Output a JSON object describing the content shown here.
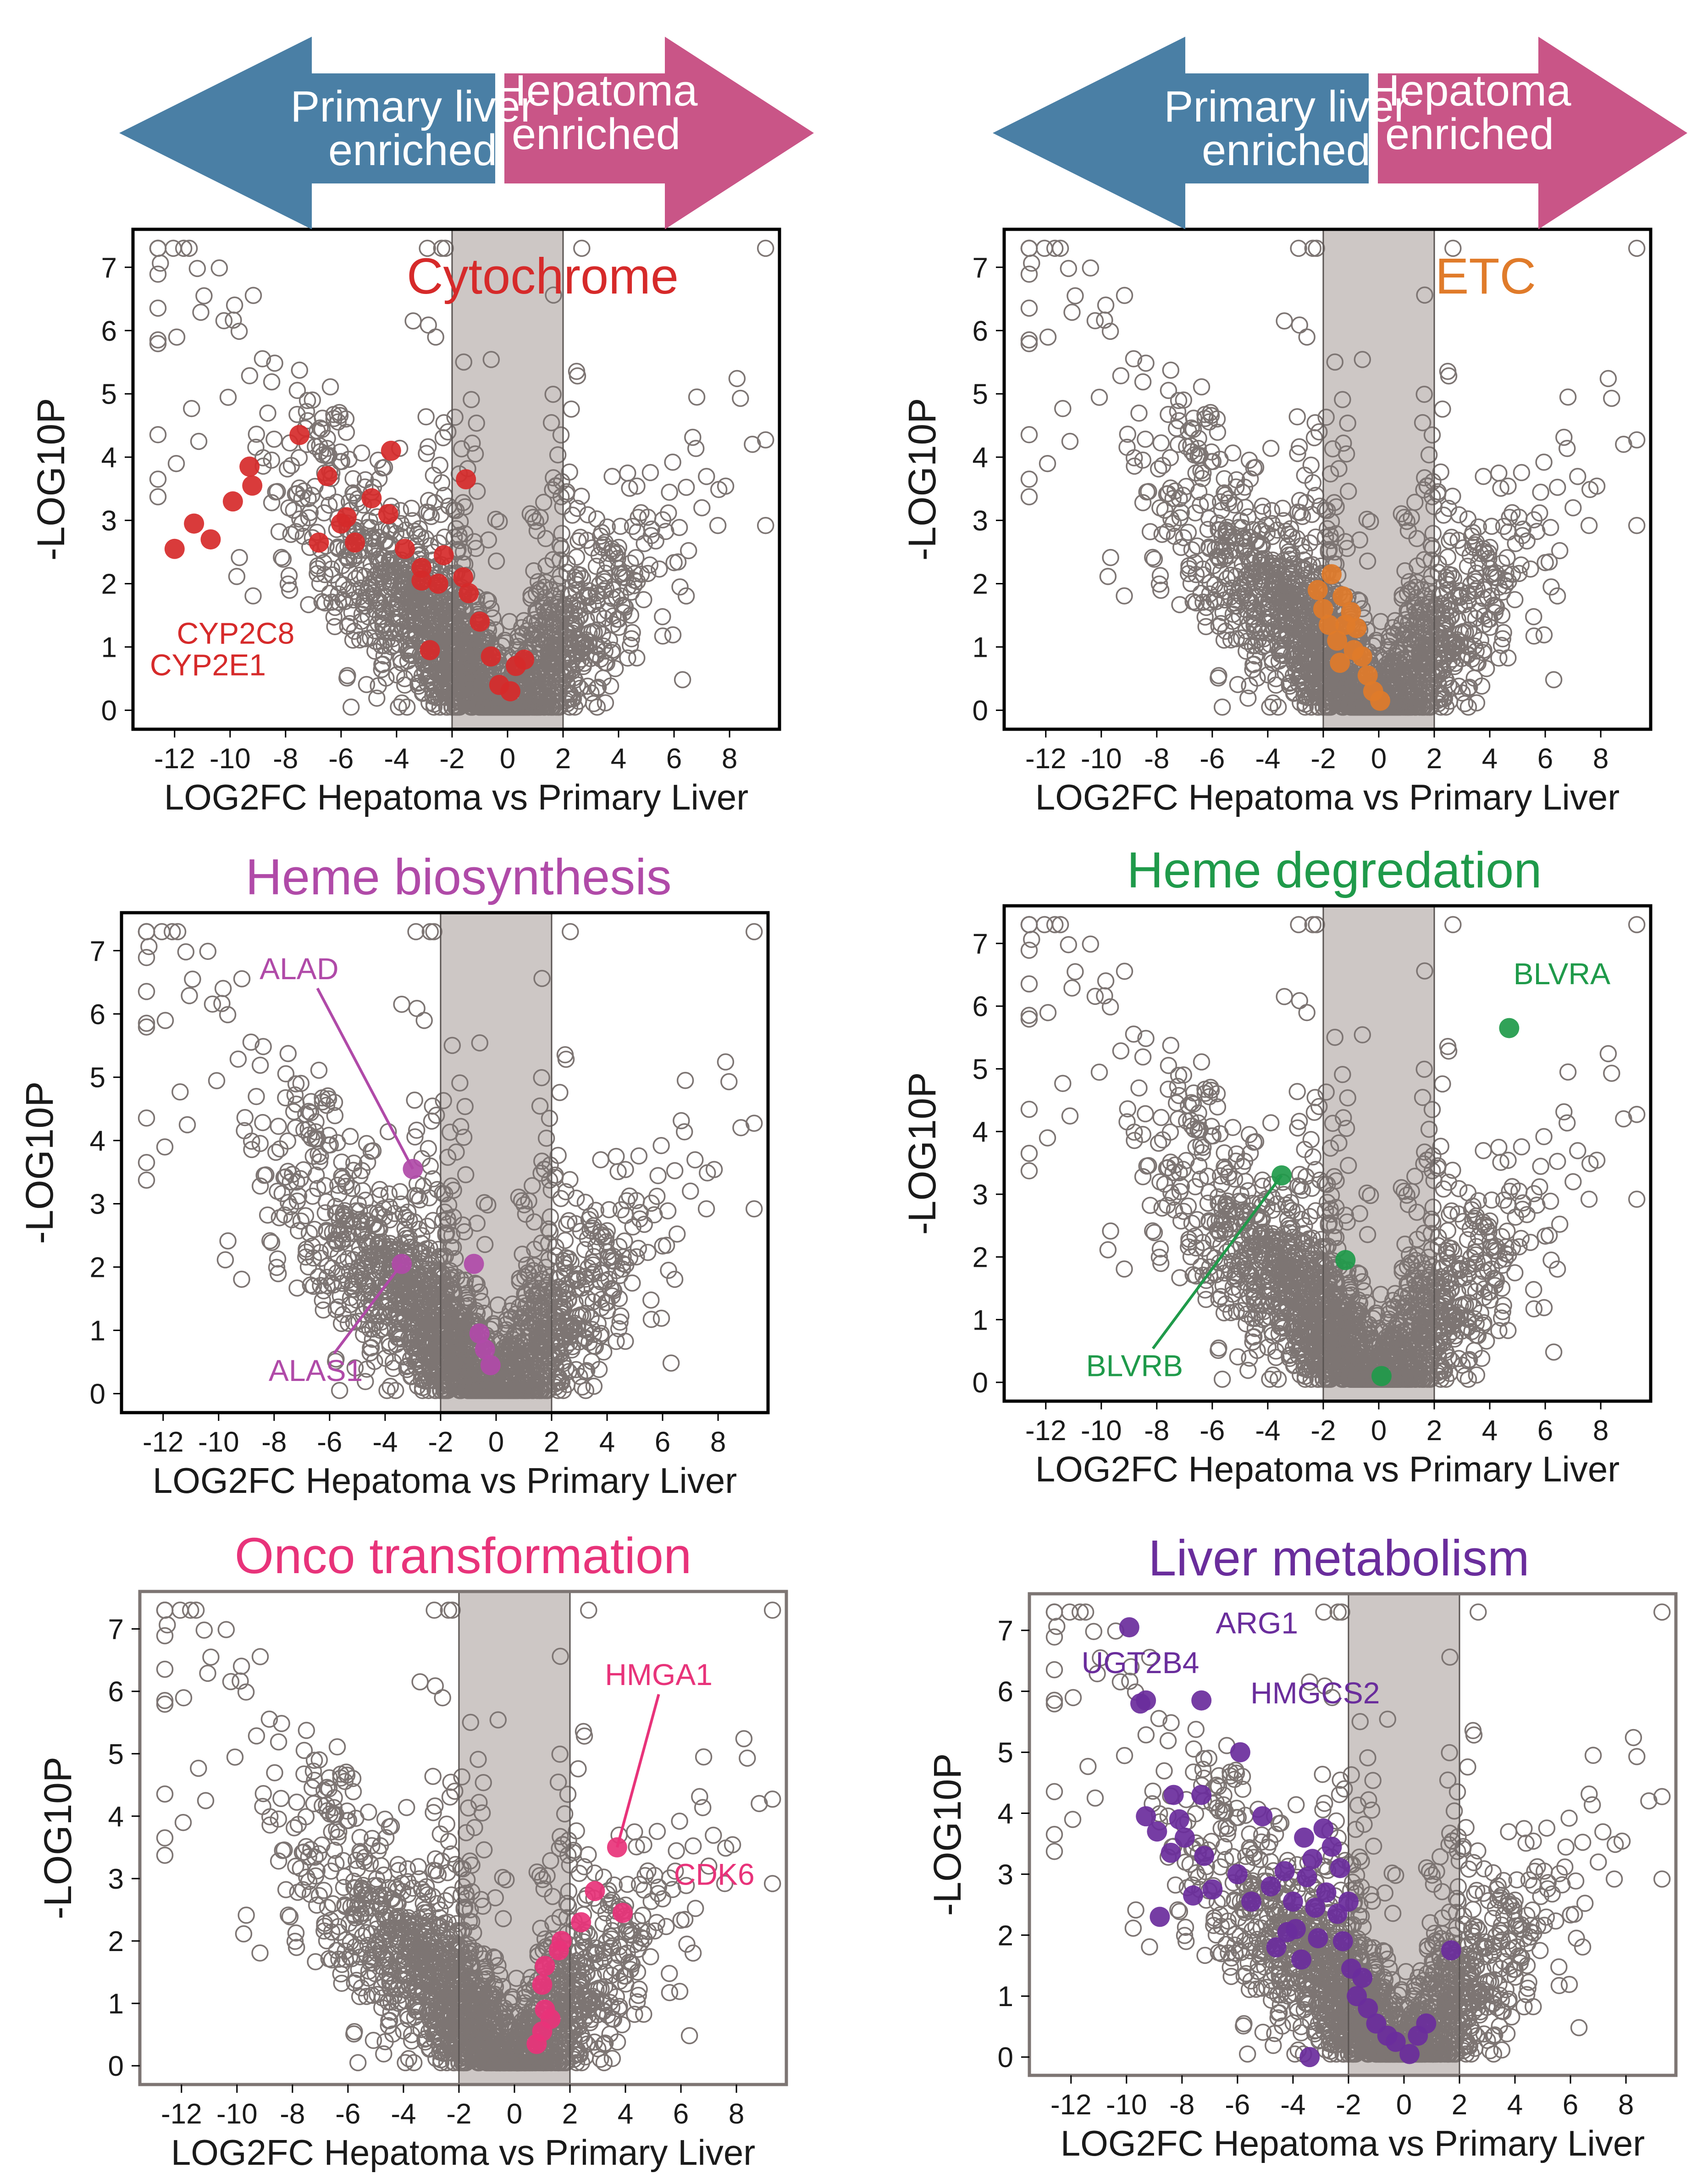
{
  "arrows": [
    {
      "left_label": [
        "Primary liver",
        "enriched"
      ],
      "right_label": [
        "Hepatoma",
        "enriched"
      ],
      "left_color": "#4a7fa5",
      "right_color": "#c95587"
    },
    {
      "left_label": [
        "Primary liver",
        "enriched"
      ],
      "right_label": [
        "Hepatoma",
        "enriched"
      ],
      "left_color": "#4a7fa5",
      "right_color": "#c95587"
    }
  ],
  "chart_data": [
    {
      "type": "scatter",
      "title": "Cytochrome",
      "title_inside": true,
      "accent": "#d62a2a",
      "frame": "black",
      "xlabel": "LOG2FC Hepatoma vs Primary Liver",
      "ylabel": "-LOG10P",
      "xlim": [
        -13.5,
        9.8
      ],
      "ylim": [
        -0.3,
        7.6
      ],
      "xticks": [
        -12,
        -10,
        -8,
        -6,
        -4,
        -2,
        0,
        2,
        4,
        6,
        8
      ],
      "yticks": [
        0,
        1,
        2,
        3,
        4,
        5,
        6,
        7
      ],
      "shade": [
        -2,
        2
      ],
      "highlight": [
        [
          -12,
          2.55
        ],
        [
          -11.3,
          2.95
        ],
        [
          -10.7,
          2.7
        ],
        [
          -9.9,
          3.3
        ],
        [
          -9.3,
          3.85
        ],
        [
          -9.2,
          3.55
        ],
        [
          -7.5,
          4.35
        ],
        [
          -6.8,
          2.65
        ],
        [
          -6.5,
          3.7
        ],
        [
          -6.0,
          2.95
        ],
        [
          -5.8,
          3.05
        ],
        [
          -5.5,
          2.65
        ],
        [
          -4.9,
          3.35
        ],
        [
          -4.3,
          3.1
        ],
        [
          -4.2,
          4.1
        ],
        [
          -3.7,
          2.55
        ],
        [
          -3.1,
          2.25
        ],
        [
          -3.1,
          2.05
        ],
        [
          -2.8,
          0.95
        ],
        [
          -2.5,
          2.0
        ],
        [
          -2.3,
          2.45
        ],
        [
          -1.6,
          2.1
        ],
        [
          -1.4,
          1.85
        ],
        [
          -1.5,
          3.65
        ],
        [
          -1.0,
          1.4
        ],
        [
          -0.6,
          0.85
        ],
        [
          0.1,
          0.3
        ],
        [
          0.3,
          0.7
        ],
        [
          0.6,
          0.8
        ],
        [
          -0.3,
          0.4
        ]
      ],
      "labels": [
        {
          "text": "CYP2C8",
          "x": -9.8,
          "y": 1.05,
          "anchor": "middle"
        },
        {
          "text": "CYP2E1",
          "x": -10.8,
          "y": 0.55,
          "anchor": "middle"
        }
      ]
    },
    {
      "type": "scatter",
      "title": "ETC",
      "title_inside": true,
      "accent": "#e07b2a",
      "frame": "black",
      "xlabel": "LOG2FC Hepatoma vs Primary Liver",
      "ylabel": "-LOG10P",
      "xlim": [
        -13.5,
        9.8
      ],
      "ylim": [
        -0.3,
        7.6
      ],
      "xticks": [
        -12,
        -10,
        -8,
        -6,
        -4,
        -2,
        0,
        2,
        4,
        6,
        8
      ],
      "yticks": [
        0,
        1,
        2,
        3,
        4,
        5,
        6,
        7
      ],
      "shade": [
        -2,
        2
      ],
      "highlight": [
        [
          -2.2,
          1.9
        ],
        [
          -2.0,
          1.6
        ],
        [
          -1.7,
          2.15
        ],
        [
          -1.8,
          1.35
        ],
        [
          -1.5,
          1.1
        ],
        [
          -1.3,
          1.8
        ],
        [
          -1.2,
          1.35
        ],
        [
          -1.0,
          1.55
        ],
        [
          -0.8,
          1.3
        ],
        [
          -0.6,
          0.85
        ],
        [
          -0.4,
          0.55
        ],
        [
          -0.9,
          0.95
        ],
        [
          -1.4,
          0.75
        ],
        [
          -0.2,
          0.3
        ],
        [
          0.05,
          0.15
        ]
      ],
      "labels": []
    },
    {
      "type": "scatter",
      "title": "Heme biosynthesis",
      "title_inside": false,
      "accent": "#b04aa8",
      "frame": "black",
      "xlabel": "LOG2FC Hepatoma vs Primary Liver",
      "ylabel": "-LOG10P",
      "xlim": [
        -13.5,
        9.8
      ],
      "ylim": [
        -0.3,
        7.6
      ],
      "xticks": [
        -12,
        -10,
        -8,
        -6,
        -4,
        -2,
        0,
        2,
        4,
        6,
        8
      ],
      "yticks": [
        0,
        1,
        2,
        3,
        4,
        5,
        6,
        7
      ],
      "shade": [
        -2,
        2
      ],
      "highlight": [
        [
          -3.0,
          3.55
        ],
        [
          -3.4,
          2.05
        ],
        [
          -0.8,
          2.05
        ],
        [
          -0.6,
          0.95
        ],
        [
          -0.4,
          0.7
        ],
        [
          -0.2,
          0.45
        ]
      ],
      "labels": [
        {
          "text": "ALAD",
          "x": -7.1,
          "y": 6.55,
          "anchor": "middle",
          "to": [
            -3.0,
            3.55
          ]
        },
        {
          "text": "ALAS1",
          "x": -6.5,
          "y": 0.2,
          "anchor": "middle",
          "to": [
            -3.4,
            2.05
          ]
        }
      ]
    },
    {
      "type": "scatter",
      "title": "Heme degredation",
      "title_inside": false,
      "accent": "#1f9a4a",
      "frame": "black",
      "xlabel": "LOG2FC Hepatoma vs Primary Liver",
      "ylabel": "-LOG10P",
      "xlim": [
        -13.5,
        9.8
      ],
      "ylim": [
        -0.3,
        7.6
      ],
      "xticks": [
        -12,
        -10,
        -8,
        -6,
        -4,
        -2,
        0,
        2,
        4,
        6,
        8
      ],
      "yticks": [
        0,
        1,
        2,
        3,
        4,
        5,
        6,
        7
      ],
      "shade": [
        -2,
        2
      ],
      "highlight": [
        [
          4.7,
          5.65
        ],
        [
          -3.5,
          3.3
        ],
        [
          -1.2,
          1.95
        ],
        [
          0.1,
          0.1
        ]
      ],
      "labels": [
        {
          "text": "BLVRA",
          "x": 6.6,
          "y": 6.35,
          "anchor": "middle"
        },
        {
          "text": "BLVRB",
          "x": -8.8,
          "y": 0.1,
          "anchor": "middle",
          "to": [
            -3.5,
            3.3
          ]
        }
      ]
    },
    {
      "type": "scatter",
      "title": "Onco transformation",
      "title_inside": false,
      "accent": "#e8337a",
      "frame": "gray",
      "xlabel": "LOG2FC Hepatoma vs Primary Liver",
      "ylabel": "-LOG10P",
      "xlim": [
        -13.5,
        9.8
      ],
      "ylim": [
        -0.3,
        7.6
      ],
      "xticks": [
        -12,
        -10,
        -8,
        -6,
        -4,
        -2,
        0,
        2,
        4,
        6,
        8
      ],
      "yticks": [
        0,
        1,
        2,
        3,
        4,
        5,
        6,
        7
      ],
      "shade": [
        -2,
        2
      ],
      "highlight": [
        [
          3.7,
          3.5
        ],
        [
          2.9,
          2.8
        ],
        [
          3.9,
          2.45
        ],
        [
          2.4,
          2.3
        ],
        [
          1.7,
          2.0
        ],
        [
          1.6,
          1.85
        ],
        [
          1.1,
          1.6
        ],
        [
          1.0,
          1.3
        ],
        [
          1.1,
          0.9
        ],
        [
          1.0,
          0.55
        ],
        [
          1.3,
          0.75
        ],
        [
          0.8,
          0.35
        ]
      ],
      "labels": [
        {
          "text": "HMGA1",
          "x": 5.2,
          "y": 6.1,
          "anchor": "middle",
          "to": [
            3.7,
            3.5
          ]
        },
        {
          "text": "CDK6",
          "x": 7.2,
          "y": 2.9,
          "anchor": "middle"
        }
      ]
    },
    {
      "type": "scatter",
      "title": "Liver metabolism",
      "title_inside": false,
      "accent": "#6a2d9c",
      "frame": "gray",
      "xlabel": "LOG2FC Hepatoma vs Primary Liver",
      "ylabel": "-LOG10P",
      "xlim": [
        -13.5,
        9.8
      ],
      "ylim": [
        -0.3,
        7.6
      ],
      "xticks": [
        -12,
        -10,
        -8,
        -6,
        -4,
        -2,
        0,
        2,
        4,
        6,
        8
      ],
      "yticks": [
        0,
        1,
        2,
        3,
        4,
        5,
        6,
        7
      ],
      "shade": [
        -2,
        2
      ],
      "highlight": [
        [
          -9.9,
          7.05
        ],
        [
          -9.3,
          5.85
        ],
        [
          -9.5,
          5.8
        ],
        [
          -7.3,
          5.85
        ],
        [
          -5.9,
          5.0
        ],
        [
          -9.3,
          3.95
        ],
        [
          -8.3,
          4.3
        ],
        [
          -8.1,
          3.9
        ],
        [
          -7.3,
          4.3
        ],
        [
          -8.9,
          3.7
        ],
        [
          -7.9,
          3.6
        ],
        [
          -8.4,
          3.35
        ],
        [
          -7.2,
          3.3
        ],
        [
          -6.9,
          2.75
        ],
        [
          -7.6,
          2.65
        ],
        [
          -8.8,
          2.3
        ],
        [
          -6.0,
          3.0
        ],
        [
          -5.5,
          2.55
        ],
        [
          -5.1,
          3.95
        ],
        [
          -4.8,
          2.8
        ],
        [
          -4.6,
          1.8
        ],
        [
          -4.3,
          3.05
        ],
        [
          -4.0,
          2.55
        ],
        [
          -3.9,
          2.1
        ],
        [
          -3.6,
          3.6
        ],
        [
          -3.5,
          2.95
        ],
        [
          -3.3,
          3.25
        ],
        [
          -3.2,
          2.45
        ],
        [
          -3.1,
          1.95
        ],
        [
          -2.9,
          3.75
        ],
        [
          -2.8,
          2.7
        ],
        [
          -2.6,
          3.45
        ],
        [
          -2.4,
          2.35
        ],
        [
          -2.2,
          1.9
        ],
        [
          -2.0,
          2.55
        ],
        [
          -1.9,
          1.45
        ],
        [
          -1.7,
          1.0
        ],
        [
          -1.5,
          1.3
        ],
        [
          -1.3,
          0.8
        ],
        [
          -1.0,
          0.55
        ],
        [
          -0.6,
          0.35
        ],
        [
          -0.3,
          0.25
        ],
        [
          0.2,
          0.05
        ],
        [
          0.5,
          0.35
        ],
        [
          0.8,
          0.55
        ],
        [
          1.7,
          1.75
        ],
        [
          -3.4,
          0.0
        ],
        [
          -4.2,
          2.05
        ],
        [
          -3.7,
          1.6
        ],
        [
          -2.3,
          3.1
        ]
      ],
      "labels": [
        {
          "text": "ARG1",
          "x": -5.3,
          "y": 6.95,
          "anchor": "middle"
        },
        {
          "text": "UGT2B4",
          "x": -9.5,
          "y": 6.3,
          "anchor": "middle"
        },
        {
          "text": "HMGCS2",
          "x": -3.2,
          "y": 5.8,
          "anchor": "middle"
        }
      ]
    }
  ]
}
